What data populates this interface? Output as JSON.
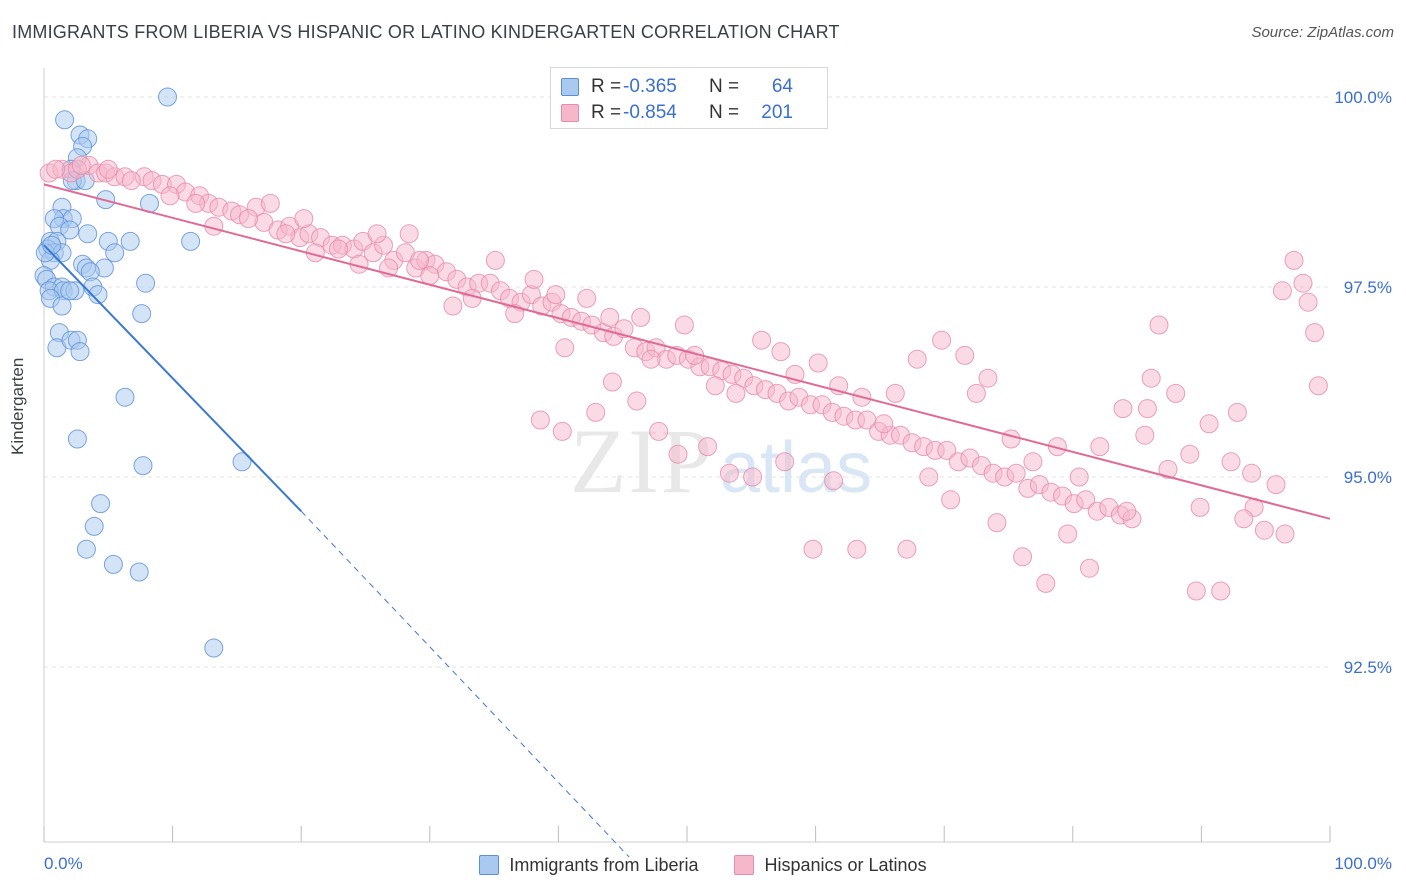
{
  "header": {
    "title": "IMMIGRANTS FROM LIBERIA VS HISPANIC OR LATINO KINDERGARTEN CORRELATION CHART",
    "source": "Source: ZipAtlas.com"
  },
  "stats_box": {
    "rows": [
      {
        "r_label": "R =",
        "r_value": "-0.365",
        "n_label": "N =",
        "n_value": "64"
      },
      {
        "r_label": "R =",
        "r_value": "-0.854",
        "n_label": "N =",
        "n_value": "201"
      }
    ]
  },
  "legend": {
    "items": [
      {
        "label": "Immigrants from Liberia"
      },
      {
        "label": "Hispanics or Latinos"
      }
    ]
  },
  "colors": {
    "blue_fill": "#a9c9f0",
    "blue_stroke": "#5b8fd8",
    "blue_line": "#3a78d4",
    "pink_fill": "#f5b8cb",
    "pink_stroke": "#e98aa8",
    "pink_line": "#e06a95",
    "tick_label": "#3a6fd0",
    "grid": "#e3e3e3"
  },
  "chart_data": {
    "type": "scatter",
    "title": "IMMIGRANTS FROM LIBERIA VS HISPANIC OR LATINO KINDERGARTEN CORRELATION CHART",
    "xlabel": "",
    "ylabel": "Kindergarten",
    "xlim": [
      0,
      100
    ],
    "ylim": [
      90.0,
      100.5
    ],
    "x_tick_labels": [
      "0.0%",
      "100.0%"
    ],
    "y_ticks": [
      92.5,
      95.0,
      97.5,
      100.0
    ],
    "y_tick_labels": [
      "92.5%",
      "95.0%",
      "97.5%",
      "100.0%"
    ],
    "grid": true,
    "legend_position": "bottom",
    "watermark": "ZIPatlas",
    "series": [
      {
        "name": "Immigrants from Liberia",
        "color": "#a9c9f0",
        "points": [
          [
            9.6,
            100.0
          ],
          [
            1.6,
            99.7
          ],
          [
            2.8,
            99.5
          ],
          [
            3.4,
            99.45
          ],
          [
            3.0,
            99.35
          ],
          [
            2.6,
            99.2
          ],
          [
            2.1,
            99.05
          ],
          [
            2.5,
            98.9
          ],
          [
            2.2,
            98.9
          ],
          [
            3.2,
            98.9
          ],
          [
            1.4,
            98.55
          ],
          [
            4.8,
            98.65
          ],
          [
            8.2,
            98.6
          ],
          [
            1.5,
            98.4
          ],
          [
            2.2,
            98.4
          ],
          [
            0.8,
            98.4
          ],
          [
            1.2,
            98.3
          ],
          [
            3.4,
            98.2
          ],
          [
            2.0,
            98.25
          ],
          [
            0.5,
            98.1
          ],
          [
            1.0,
            98.1
          ],
          [
            5.0,
            98.1
          ],
          [
            6.7,
            98.1
          ],
          [
            11.4,
            98.1
          ],
          [
            0.3,
            98.0
          ],
          [
            0.8,
            97.95
          ],
          [
            1.4,
            97.95
          ],
          [
            5.5,
            97.95
          ],
          [
            0.5,
            97.85
          ],
          [
            3.0,
            97.8
          ],
          [
            3.3,
            97.75
          ],
          [
            4.7,
            97.75
          ],
          [
            3.6,
            97.7
          ],
          [
            0.0,
            97.65
          ],
          [
            0.2,
            97.6
          ],
          [
            7.9,
            97.55
          ],
          [
            0.8,
            97.5
          ],
          [
            1.4,
            97.5
          ],
          [
            3.8,
            97.5
          ],
          [
            0.4,
            97.45
          ],
          [
            1.5,
            97.45
          ],
          [
            2.4,
            97.45
          ],
          [
            4.2,
            97.4
          ],
          [
            0.5,
            97.35
          ],
          [
            1.4,
            97.25
          ],
          [
            7.6,
            97.15
          ],
          [
            1.2,
            96.9
          ],
          [
            1.0,
            96.7
          ],
          [
            2.1,
            96.8
          ],
          [
            2.6,
            96.8
          ],
          [
            2.8,
            96.65
          ],
          [
            6.3,
            96.05
          ],
          [
            2.6,
            95.5
          ],
          [
            7.7,
            95.15
          ],
          [
            15.4,
            95.2
          ],
          [
            4.4,
            94.65
          ],
          [
            3.9,
            94.35
          ],
          [
            3.3,
            94.05
          ],
          [
            5.4,
            93.85
          ],
          [
            7.4,
            93.75
          ],
          [
            13.2,
            92.75
          ],
          [
            0.1,
            97.95
          ],
          [
            0.6,
            98.05
          ],
          [
            2.0,
            97.45
          ]
        ]
      },
      {
        "name": "Hispanics or Latinos",
        "color": "#f5b8cb",
        "points": [
          [
            0.4,
            99.0
          ],
          [
            1.4,
            99.05
          ],
          [
            2.1,
            99.0
          ],
          [
            3.5,
            99.1
          ],
          [
            2.6,
            99.05
          ],
          [
            4.2,
            99.0
          ],
          [
            4.8,
            99.0
          ],
          [
            5.5,
            98.95
          ],
          [
            6.3,
            98.95
          ],
          [
            7.8,
            98.95
          ],
          [
            8.4,
            98.9
          ],
          [
            9.2,
            98.85
          ],
          [
            10.3,
            98.85
          ],
          [
            11.0,
            98.75
          ],
          [
            12.1,
            98.7
          ],
          [
            12.8,
            98.6
          ],
          [
            13.6,
            98.55
          ],
          [
            14.6,
            98.5
          ],
          [
            15.2,
            98.45
          ],
          [
            16.5,
            98.55
          ],
          [
            17.1,
            98.35
          ],
          [
            18.2,
            98.25
          ],
          [
            19.1,
            98.3
          ],
          [
            19.9,
            98.15
          ],
          [
            20.6,
            98.2
          ],
          [
            21.5,
            98.15
          ],
          [
            22.4,
            98.05
          ],
          [
            23.2,
            98.05
          ],
          [
            24.1,
            98.0
          ],
          [
            24.8,
            98.1
          ],
          [
            25.6,
            97.95
          ],
          [
            26.4,
            98.05
          ],
          [
            27.2,
            97.85
          ],
          [
            28.1,
            97.95
          ],
          [
            28.9,
            97.75
          ],
          [
            29.7,
            97.85
          ],
          [
            30.4,
            97.8
          ],
          [
            31.3,
            97.7
          ],
          [
            32.1,
            97.6
          ],
          [
            32.9,
            97.5
          ],
          [
            33.8,
            97.55
          ],
          [
            34.7,
            97.55
          ],
          [
            35.5,
            97.45
          ],
          [
            36.2,
            97.35
          ],
          [
            37.1,
            97.3
          ],
          [
            37.9,
            97.4
          ],
          [
            38.7,
            97.25
          ],
          [
            39.5,
            97.3
          ],
          [
            40.2,
            97.15
          ],
          [
            41.0,
            97.1
          ],
          [
            41.8,
            97.05
          ],
          [
            42.6,
            97.0
          ],
          [
            43.5,
            96.9
          ],
          [
            44.3,
            96.85
          ],
          [
            45.1,
            96.95
          ],
          [
            45.9,
            96.7
          ],
          [
            46.8,
            96.65
          ],
          [
            47.6,
            96.7
          ],
          [
            48.4,
            96.55
          ],
          [
            49.2,
            96.6
          ],
          [
            50.1,
            96.55
          ],
          [
            51.0,
            96.45
          ],
          [
            51.8,
            96.45
          ],
          [
            52.7,
            96.4
          ],
          [
            53.5,
            96.35
          ],
          [
            54.4,
            96.3
          ],
          [
            55.2,
            96.2
          ],
          [
            56.1,
            96.15
          ],
          [
            57.0,
            96.1
          ],
          [
            57.9,
            96.0
          ],
          [
            58.7,
            96.05
          ],
          [
            59.6,
            95.95
          ],
          [
            60.5,
            95.95
          ],
          [
            61.3,
            95.85
          ],
          [
            62.2,
            95.8
          ],
          [
            63.1,
            95.75
          ],
          [
            64.0,
            95.75
          ],
          [
            64.9,
            95.6
          ],
          [
            65.8,
            95.55
          ],
          [
            66.6,
            95.55
          ],
          [
            67.5,
            95.45
          ],
          [
            68.4,
            95.4
          ],
          [
            69.3,
            95.35
          ],
          [
            70.2,
            95.35
          ],
          [
            71.1,
            95.2
          ],
          [
            72.0,
            95.25
          ],
          [
            72.9,
            95.15
          ],
          [
            73.8,
            95.05
          ],
          [
            74.7,
            95.0
          ],
          [
            75.6,
            95.05
          ],
          [
            76.5,
            94.85
          ],
          [
            77.4,
            94.9
          ],
          [
            78.3,
            94.8
          ],
          [
            79.2,
            94.75
          ],
          [
            80.1,
            94.65
          ],
          [
            81.0,
            94.7
          ],
          [
            81.9,
            94.55
          ],
          [
            82.8,
            94.6
          ],
          [
            83.7,
            94.5
          ],
          [
            84.6,
            94.45
          ],
          [
            0.9,
            99.05
          ],
          [
            2.9,
            99.1
          ],
          [
            5.0,
            99.05
          ],
          [
            6.8,
            98.9
          ],
          [
            9.8,
            98.7
          ],
          [
            11.8,
            98.6
          ],
          [
            13.2,
            98.3
          ],
          [
            15.9,
            98.4
          ],
          [
            17.6,
            98.6
          ],
          [
            18.8,
            98.2
          ],
          [
            20.2,
            98.4
          ],
          [
            21.1,
            97.95
          ],
          [
            22.9,
            98.0
          ],
          [
            24.5,
            97.8
          ],
          [
            25.9,
            98.2
          ],
          [
            26.8,
            97.75
          ],
          [
            28.4,
            98.2
          ],
          [
            29.2,
            97.85
          ],
          [
            30.0,
            97.65
          ],
          [
            31.8,
            97.25
          ],
          [
            33.3,
            97.35
          ],
          [
            35.1,
            97.85
          ],
          [
            36.6,
            97.15
          ],
          [
            38.1,
            97.6
          ],
          [
            39.8,
            97.4
          ],
          [
            40.5,
            96.7
          ],
          [
            42.2,
            97.35
          ],
          [
            44.0,
            97.1
          ],
          [
            46.4,
            97.1
          ],
          [
            47.2,
            96.55
          ],
          [
            49.8,
            97.0
          ],
          [
            50.6,
            96.6
          ],
          [
            52.2,
            96.2
          ],
          [
            53.8,
            96.1
          ],
          [
            55.8,
            96.8
          ],
          [
            57.3,
            96.65
          ],
          [
            58.4,
            96.35
          ],
          [
            60.2,
            96.5
          ],
          [
            61.8,
            96.2
          ],
          [
            63.6,
            96.05
          ],
          [
            66.2,
            96.1
          ],
          [
            67.9,
            96.55
          ],
          [
            69.8,
            96.8
          ],
          [
            71.6,
            96.6
          ],
          [
            73.4,
            96.3
          ],
          [
            75.2,
            95.5
          ],
          [
            76.9,
            95.2
          ],
          [
            78.8,
            95.4
          ],
          [
            80.5,
            95.0
          ],
          [
            82.1,
            95.4
          ],
          [
            83.9,
            95.9
          ],
          [
            85.6,
            95.55
          ],
          [
            87.4,
            95.1
          ],
          [
            89.1,
            95.3
          ],
          [
            90.6,
            95.7
          ],
          [
            92.3,
            95.2
          ],
          [
            94.1,
            94.6
          ],
          [
            95.8,
            94.9
          ],
          [
            97.2,
            97.85
          ],
          [
            98.3,
            97.3
          ],
          [
            99.1,
            96.2
          ],
          [
            98.8,
            96.9
          ],
          [
            96.3,
            97.45
          ],
          [
            72.5,
            96.1
          ],
          [
            74.1,
            94.4
          ],
          [
            76.1,
            93.95
          ],
          [
            77.9,
            93.6
          ],
          [
            79.6,
            94.25
          ],
          [
            81.3,
            93.8
          ],
          [
            84.2,
            94.55
          ],
          [
            86.1,
            96.3
          ],
          [
            88.0,
            96.1
          ],
          [
            89.9,
            94.6
          ],
          [
            91.5,
            93.5
          ],
          [
            93.3,
            94.45
          ],
          [
            94.9,
            94.3
          ],
          [
            96.5,
            94.25
          ],
          [
            70.5,
            94.7
          ],
          [
            68.8,
            95.0
          ],
          [
            67.1,
            94.05
          ],
          [
            65.3,
            95.7
          ],
          [
            63.2,
            94.05
          ],
          [
            61.4,
            94.95
          ],
          [
            59.8,
            94.05
          ],
          [
            57.6,
            95.2
          ],
          [
            55.1,
            95.0
          ],
          [
            53.3,
            95.05
          ],
          [
            51.6,
            95.4
          ],
          [
            49.3,
            95.3
          ],
          [
            47.8,
            95.6
          ],
          [
            46.1,
            96.0
          ],
          [
            44.2,
            96.25
          ],
          [
            42.9,
            95.85
          ],
          [
            40.3,
            95.6
          ],
          [
            38.6,
            95.75
          ],
          [
            86.7,
            97.0
          ],
          [
            89.6,
            93.5
          ],
          [
            85.8,
            95.9
          ],
          [
            92.8,
            95.85
          ],
          [
            97.9,
            97.55
          ],
          [
            93.9,
            95.05
          ]
        ]
      }
    ],
    "trendlines": [
      {
        "series": "Immigrants from Liberia",
        "solid": [
          [
            0,
            98.05
          ],
          [
            20,
            94.55
          ]
        ],
        "dashed": [
          [
            20,
            94.55
          ],
          [
            45.5,
            90.0
          ]
        ]
      },
      {
        "series": "Hispanics or Latinos",
        "solid": [
          [
            0,
            98.85
          ],
          [
            100,
            94.45
          ]
        ]
      }
    ]
  }
}
